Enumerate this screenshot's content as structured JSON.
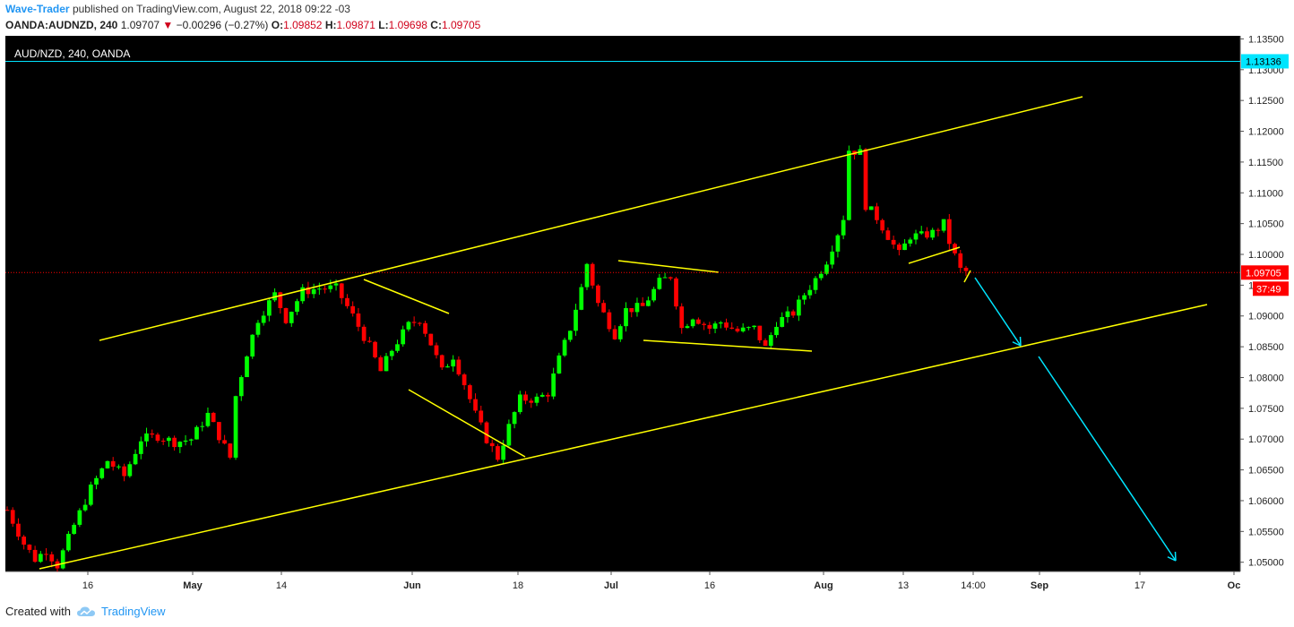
{
  "header": {
    "author": "Wave-Trader",
    "published_text": "published on TradingView.com, August 22, 2018 09:22 -03",
    "symbol": "OANDA:AUDNZD, 240",
    "last": "1.09707",
    "change": "−0.00296 (−0.27%)",
    "open_label": "O:",
    "open": "1.09852",
    "high_label": "H:",
    "high": "1.09871",
    "low_label": "L:",
    "low": "1.09698",
    "close_label": "C:",
    "close": "1.09705"
  },
  "footer": {
    "created_with": "Created with",
    "brand": "TradingView"
  },
  "colors": {
    "up": "#00ff00",
    "down": "#ff0000",
    "trend": "#ffff00",
    "projection": "#00e5ff",
    "background": "#000000",
    "price_label": "#ff0000",
    "level_label": "#00e5ff"
  },
  "chart_data": {
    "type": "candlestick",
    "title": "AUD/NZD, 240, OANDA",
    "y_ticks": [
      "1.13500",
      "1.13000",
      "1.12500",
      "1.12000",
      "1.11500",
      "1.11000",
      "1.10500",
      "1.10000",
      "1.09500",
      "1.09000",
      "1.08500",
      "1.08000",
      "1.07500",
      "1.07000",
      "1.06500",
      "1.06000",
      "1.05500",
      "1.05000"
    ],
    "ylim": [
      1.0485,
      1.1355
    ],
    "x_ticks": [
      "16",
      "May",
      "14",
      "Jun",
      "18",
      "Jul",
      "16",
      "Aug",
      "13",
      "14:00",
      "Sep",
      "17",
      "Oc"
    ],
    "current_price": "1.09705",
    "countdown": "37:49",
    "level_line": "1.13136",
    "price_path": [
      [
        0,
        1.0585
      ],
      [
        3,
        1.053
      ],
      [
        5,
        1.0505
      ],
      [
        7,
        1.052
      ],
      [
        9,
        1.0495
      ],
      [
        12,
        1.056
      ],
      [
        15,
        1.062
      ],
      [
        18,
        1.0665
      ],
      [
        21,
        1.064
      ],
      [
        24,
        1.07
      ],
      [
        27,
        1.0705
      ],
      [
        30,
        1.0695
      ],
      [
        33,
        1.07
      ],
      [
        36,
        1.074
      ],
      [
        40,
        1.067
      ],
      [
        41,
        1.077
      ],
      [
        43,
        1.084
      ],
      [
        45,
        1.0895
      ],
      [
        48,
        1.0935
      ],
      [
        50,
        1.0895
      ],
      [
        53,
        1.094
      ],
      [
        56,
        1.0945
      ],
      [
        59,
        1.0945
      ],
      [
        62,
        1.09
      ],
      [
        65,
        1.085
      ],
      [
        67,
        1.081
      ],
      [
        69,
        1.0845
      ],
      [
        72,
        1.0885
      ],
      [
        74,
        1.0895
      ],
      [
        76,
        1.0855
      ],
      [
        78,
        1.081
      ],
      [
        80,
        1.0835
      ],
      [
        82,
        1.079
      ],
      [
        84,
        1.074
      ],
      [
        86,
        1.07
      ],
      [
        88,
        1.067
      ],
      [
        90,
        1.072
      ],
      [
        92,
        1.0765
      ],
      [
        95,
        1.0765
      ],
      [
        97,
        1.0775
      ],
      [
        99,
        1.083
      ],
      [
        101,
        1.088
      ],
      [
        103,
        1.0945
      ],
      [
        104,
        1.0985
      ],
      [
        106,
        1.092
      ],
      [
        109,
        1.087
      ],
      [
        111,
        1.091
      ],
      [
        114,
        1.0915
      ],
      [
        117,
        1.0955
      ],
      [
        119,
        1.0965
      ],
      [
        121,
        1.088
      ],
      [
        123,
        1.09
      ],
      [
        126,
        1.088
      ],
      [
        128,
        1.089
      ],
      [
        131,
        1.0875
      ],
      [
        134,
        1.088
      ],
      [
        136,
        1.0848
      ],
      [
        138,
        1.089
      ],
      [
        141,
        1.0905
      ],
      [
        143,
        1.0935
      ],
      [
        145,
        1.096
      ],
      [
        147,
        1.099
      ],
      [
        149,
        1.1035
      ],
      [
        150,
        1.106
      ],
      [
        151,
        1.117
      ],
      [
        153,
        1.1165
      ],
      [
        154,
        1.108
      ],
      [
        156,
        1.106
      ],
      [
        158,
        1.103
      ],
      [
        160,
        1.1
      ],
      [
        162,
        1.103
      ],
      [
        164,
        1.103
      ],
      [
        166,
        1.1035
      ],
      [
        168,
        1.105
      ],
      [
        169,
        1.102
      ],
      [
        171,
        1.0975
      ],
      [
        172,
        1.0972
      ]
    ],
    "trend_lines": [
      {
        "name": "upper-channel",
        "from": [
          0,
          1.0855
        ],
        "to": [
          205,
          1.1255
        ]
      },
      {
        "name": "lower-channel",
        "from": [
          0,
          1.0478
        ],
        "to": [
          205,
          1.092
        ]
      }
    ]
  }
}
